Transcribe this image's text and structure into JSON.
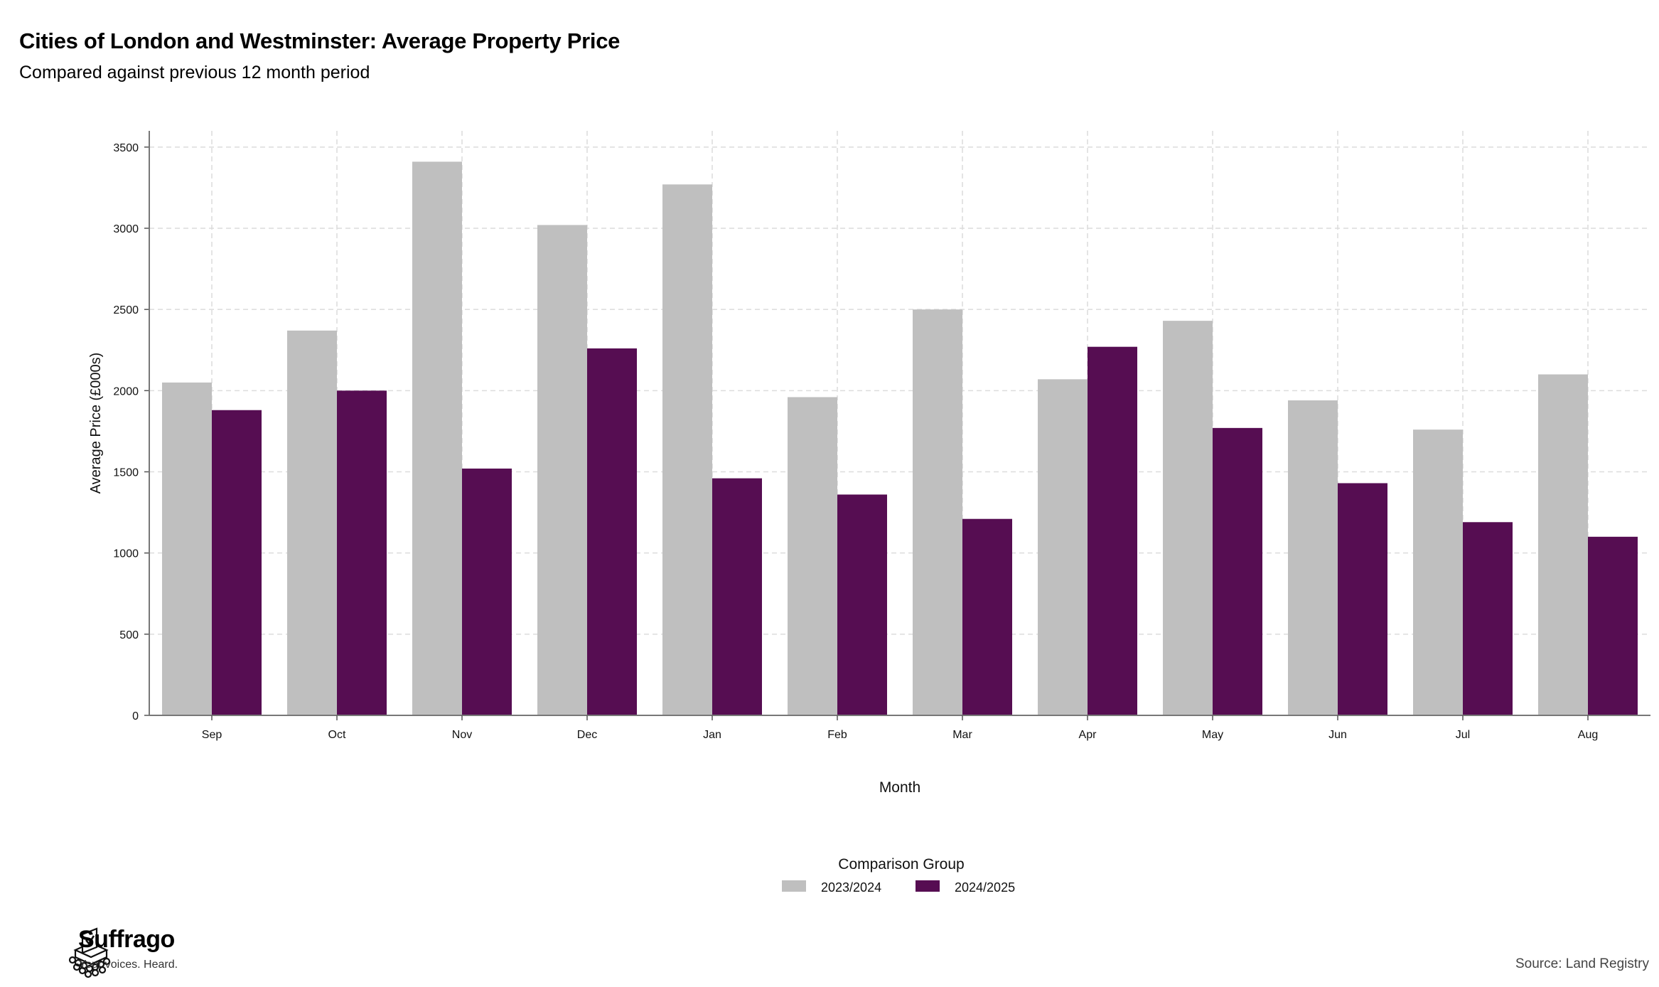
{
  "header": {
    "title": "Cities of London and Westminster: Average Property Price",
    "subtitle": "Compared against previous 12 month period"
  },
  "chart_data": {
    "type": "bar",
    "xlabel": "Month",
    "ylabel": "Average Price (£000s)",
    "ylim": [
      0,
      3600
    ],
    "yticks": [
      0,
      500,
      1000,
      1500,
      2000,
      2500,
      3000,
      3500
    ],
    "grid": true,
    "categories": [
      "Sep",
      "Oct",
      "Nov",
      "Dec",
      "Jan",
      "Feb",
      "Mar",
      "Apr",
      "May",
      "Jun",
      "Jul",
      "Aug"
    ],
    "legend": {
      "title": "Comparison Group",
      "placement": "bottom-center"
    },
    "series": [
      {
        "name": "2023/2024",
        "color": "#bfbfbf",
        "values": [
          2050,
          2370,
          3410,
          3020,
          3270,
          1960,
          2500,
          2070,
          2430,
          1940,
          1760,
          2100
        ]
      },
      {
        "name": "2024/2025",
        "color": "#560d52",
        "values": [
          1880,
          2000,
          1520,
          2260,
          1460,
          1360,
          1210,
          2270,
          1770,
          1430,
          1190,
          1100
        ]
      }
    ]
  },
  "footer": {
    "brand_name": "Suffrago",
    "brand_tagline": "Your voices. Heard.",
    "source": "Source: Land Registry"
  }
}
